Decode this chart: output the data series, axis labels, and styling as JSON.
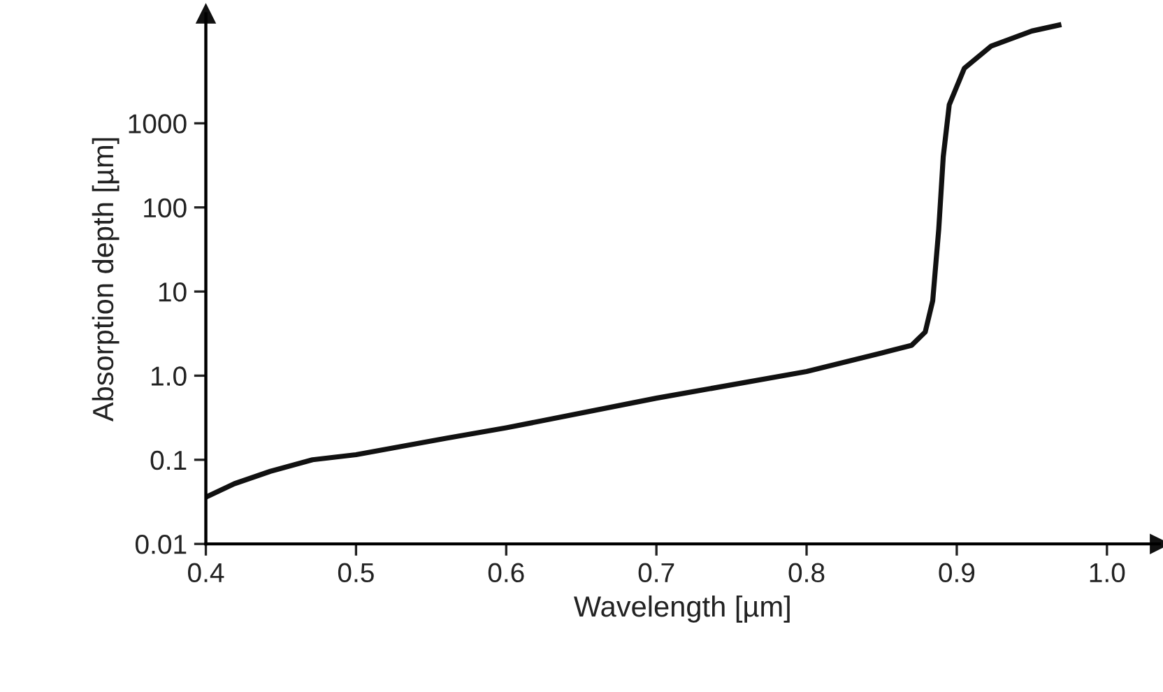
{
  "chart_data": {
    "type": "line",
    "xlabel": "Wavelength [µm]",
    "ylabel": "Absorption depth [µm]",
    "x": [
      0.4015,
      0.419,
      0.443,
      0.471,
      0.5,
      0.56,
      0.6,
      0.7,
      0.8,
      0.85,
      0.87,
      0.879,
      0.884,
      0.888,
      0.891,
      0.895,
      0.905,
      0.923,
      0.95,
      0.968
    ],
    "series": [
      {
        "color": "#111111",
        "values": [
          0.037,
          0.052,
          0.073,
          0.1,
          0.115,
          0.18,
          0.24,
          0.54,
          1.12,
          1.86,
          2.3,
          3.3,
          7.8,
          55,
          400,
          1660,
          4500,
          8300,
          12500,
          14700
        ]
      }
    ],
    "log": "y",
    "xlim": [
      0.4,
      1.035
    ],
    "ylim": [
      0.01,
      20000
    ],
    "xticks": [
      0.4,
      0.5,
      0.6,
      0.7,
      0.8,
      0.9,
      {
        "value": 1.0,
        "label": "1.0"
      }
    ],
    "yticks": [
      0.01,
      0.1,
      {
        "value": 1,
        "label": "1.0"
      },
      10,
      100,
      1000
    ],
    "grid": false,
    "marker": "none",
    "line_style": "solid"
  }
}
